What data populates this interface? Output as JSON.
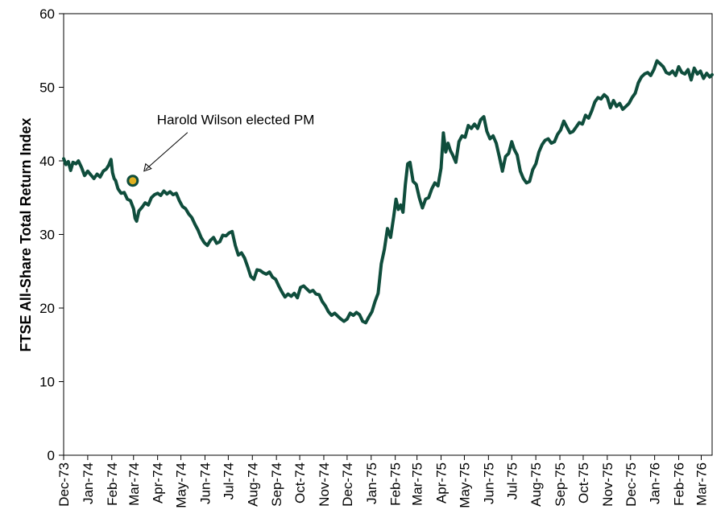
{
  "chart_data": {
    "type": "line",
    "title": "",
    "xlabel": "",
    "ylabel": "FTSE All-Share Total Return Index",
    "ylim": [
      0,
      60
    ],
    "yticks": [
      0,
      10,
      20,
      30,
      40,
      50,
      60
    ],
    "xlim": [
      "1973-12-01",
      "1976-03-15"
    ],
    "xtick_labels": [
      "Dec-73",
      "Jan-74",
      "Feb-74",
      "Mar-74",
      "Apr-74",
      "May-74",
      "Jun-74",
      "Jul-74",
      "Aug-74",
      "Sep-74",
      "Oct-74",
      "Nov-74",
      "Dec-74",
      "Jan-75",
      "Feb-75",
      "Mar-75",
      "Apr-75",
      "May-75",
      "Jun-75",
      "Jul-75",
      "Aug-75",
      "Sep-75",
      "Oct-75",
      "Nov-75",
      "Dec-75",
      "Jan-76",
      "Feb-76",
      "Mar-76"
    ],
    "grid": false,
    "legend": "none",
    "series": [
      {
        "color": "#0f4d3c",
        "points": [
          [
            "1973-12-01",
            40.3
          ],
          [
            "1973-12-04",
            39.5
          ],
          [
            "1973-12-07",
            39.9
          ],
          [
            "1973-12-10",
            38.7
          ],
          [
            "1973-12-13",
            39.8
          ],
          [
            "1973-12-17",
            39.6
          ],
          [
            "1973-12-20",
            40.0
          ],
          [
            "1973-12-24",
            39.1
          ],
          [
            "1973-12-28",
            38.0
          ],
          [
            "1974-01-01",
            38.6
          ],
          [
            "1974-01-05",
            38.1
          ],
          [
            "1974-01-09",
            37.6
          ],
          [
            "1974-01-13",
            38.2
          ],
          [
            "1974-01-17",
            37.8
          ],
          [
            "1974-01-21",
            38.6
          ],
          [
            "1974-01-25",
            38.9
          ],
          [
            "1974-01-28",
            39.4
          ],
          [
            "1974-01-31",
            40.2
          ],
          [
            "1974-02-02",
            38.4
          ],
          [
            "1974-02-04",
            37.6
          ],
          [
            "1974-02-06",
            37.3
          ],
          [
            "1974-02-09",
            36.2
          ],
          [
            "1974-02-13",
            35.6
          ],
          [
            "1974-02-17",
            35.7
          ],
          [
            "1974-02-21",
            34.8
          ],
          [
            "1974-02-25",
            34.6
          ],
          [
            "1974-03-01",
            33.5
          ],
          [
            "1974-03-03",
            32.2
          ],
          [
            "1974-03-05",
            31.8
          ],
          [
            "1974-03-08",
            33.2
          ],
          [
            "1974-03-12",
            33.7
          ],
          [
            "1974-03-16",
            34.3
          ],
          [
            "1974-03-20",
            34.0
          ],
          [
            "1974-03-24",
            35.0
          ],
          [
            "1974-03-28",
            35.4
          ],
          [
            "1974-04-01",
            35.6
          ],
          [
            "1974-04-05",
            35.3
          ],
          [
            "1974-04-09",
            35.9
          ],
          [
            "1974-04-13",
            35.5
          ],
          [
            "1974-04-17",
            35.8
          ],
          [
            "1974-04-21",
            35.4
          ],
          [
            "1974-04-25",
            35.6
          ],
          [
            "1974-04-29",
            34.6
          ],
          [
            "1974-05-03",
            33.8
          ],
          [
            "1974-05-07",
            33.5
          ],
          [
            "1974-05-11",
            32.8
          ],
          [
            "1974-05-15",
            32.3
          ],
          [
            "1974-05-19",
            31.4
          ],
          [
            "1974-05-23",
            30.6
          ],
          [
            "1974-05-27",
            29.6
          ],
          [
            "1974-05-31",
            28.9
          ],
          [
            "1974-06-04",
            28.5
          ],
          [
            "1974-06-08",
            29.2
          ],
          [
            "1974-06-12",
            29.6
          ],
          [
            "1974-06-16",
            28.8
          ],
          [
            "1974-06-20",
            29.0
          ],
          [
            "1974-06-24",
            29.9
          ],
          [
            "1974-06-28",
            29.8
          ],
          [
            "1974-07-02",
            30.2
          ],
          [
            "1974-07-06",
            30.4
          ],
          [
            "1974-07-10",
            28.5
          ],
          [
            "1974-07-14",
            27.2
          ],
          [
            "1974-07-18",
            27.5
          ],
          [
            "1974-07-22",
            26.8
          ],
          [
            "1974-07-26",
            25.6
          ],
          [
            "1974-07-30",
            24.3
          ],
          [
            "1974-08-03",
            23.9
          ],
          [
            "1974-08-07",
            25.2
          ],
          [
            "1974-08-11",
            25.1
          ],
          [
            "1974-08-15",
            24.8
          ],
          [
            "1974-08-19",
            24.6
          ],
          [
            "1974-08-23",
            24.9
          ],
          [
            "1974-08-27",
            24.2
          ],
          [
            "1974-08-31",
            23.9
          ],
          [
            "1974-09-04",
            23.0
          ],
          [
            "1974-09-08",
            22.2
          ],
          [
            "1974-09-12",
            21.5
          ],
          [
            "1974-09-16",
            21.9
          ],
          [
            "1974-09-20",
            21.6
          ],
          [
            "1974-09-24",
            22.0
          ],
          [
            "1974-09-28",
            21.4
          ],
          [
            "1974-10-02",
            22.8
          ],
          [
            "1974-10-06",
            23.0
          ],
          [
            "1974-10-10",
            22.6
          ],
          [
            "1974-10-14",
            22.2
          ],
          [
            "1974-10-18",
            22.4
          ],
          [
            "1974-10-22",
            21.9
          ],
          [
            "1974-10-26",
            21.8
          ],
          [
            "1974-10-30",
            20.9
          ],
          [
            "1974-11-03",
            20.3
          ],
          [
            "1974-11-07",
            19.5
          ],
          [
            "1974-11-11",
            19.0
          ],
          [
            "1974-11-15",
            19.3
          ],
          [
            "1974-11-19",
            18.9
          ],
          [
            "1974-11-23",
            18.5
          ],
          [
            "1974-11-27",
            18.2
          ],
          [
            "1974-12-01",
            18.5
          ],
          [
            "1974-12-05",
            19.3
          ],
          [
            "1974-12-09",
            19.0
          ],
          [
            "1974-12-13",
            19.4
          ],
          [
            "1974-12-17",
            19.1
          ],
          [
            "1974-12-21",
            18.2
          ],
          [
            "1974-12-25",
            18.0
          ],
          [
            "1974-12-29",
            18.8
          ],
          [
            "1975-01-02",
            19.5
          ],
          [
            "1975-01-06",
            20.9
          ],
          [
            "1975-01-10",
            22.0
          ],
          [
            "1975-01-14",
            26.0
          ],
          [
            "1975-01-18",
            28.0
          ],
          [
            "1975-01-22",
            30.8
          ],
          [
            "1975-01-26",
            29.6
          ],
          [
            "1975-01-30",
            32.4
          ],
          [
            "1975-02-02",
            34.8
          ],
          [
            "1975-02-05",
            33.4
          ],
          [
            "1975-02-08",
            34.0
          ],
          [
            "1975-02-11",
            33.0
          ],
          [
            "1975-02-14",
            36.8
          ],
          [
            "1975-02-17",
            39.6
          ],
          [
            "1975-02-20",
            39.8
          ],
          [
            "1975-02-24",
            37.2
          ],
          [
            "1975-02-28",
            36.8
          ],
          [
            "1975-03-04",
            35.0
          ],
          [
            "1975-03-08",
            33.6
          ],
          [
            "1975-03-12",
            34.8
          ],
          [
            "1975-03-16",
            35.0
          ],
          [
            "1975-03-20",
            36.2
          ],
          [
            "1975-03-24",
            37.0
          ],
          [
            "1975-03-28",
            36.6
          ],
          [
            "1975-04-01",
            39.0
          ],
          [
            "1975-04-04",
            43.8
          ],
          [
            "1975-04-07",
            41.2
          ],
          [
            "1975-04-10",
            42.4
          ],
          [
            "1975-04-13",
            41.4
          ],
          [
            "1975-04-16",
            40.8
          ],
          [
            "1975-04-20",
            39.8
          ],
          [
            "1975-04-24",
            42.6
          ],
          [
            "1975-04-28",
            43.4
          ],
          [
            "1975-05-02",
            43.2
          ],
          [
            "1975-05-06",
            44.8
          ],
          [
            "1975-05-10",
            44.4
          ],
          [
            "1975-05-14",
            45.0
          ],
          [
            "1975-05-18",
            44.4
          ],
          [
            "1975-05-22",
            45.6
          ],
          [
            "1975-05-26",
            46.0
          ],
          [
            "1975-05-30",
            44.0
          ],
          [
            "1975-06-03",
            43.0
          ],
          [
            "1975-06-07",
            43.4
          ],
          [
            "1975-06-11",
            42.4
          ],
          [
            "1975-06-15",
            40.6
          ],
          [
            "1975-06-19",
            38.6
          ],
          [
            "1975-06-23",
            40.6
          ],
          [
            "1975-06-27",
            41.0
          ],
          [
            "1975-07-01",
            42.6
          ],
          [
            "1975-07-04",
            41.6
          ],
          [
            "1975-07-08",
            40.8
          ],
          [
            "1975-07-12",
            38.6
          ],
          [
            "1975-07-16",
            37.6
          ],
          [
            "1975-07-20",
            37.0
          ],
          [
            "1975-07-24",
            37.2
          ],
          [
            "1975-07-28",
            38.8
          ],
          [
            "1975-08-01",
            39.6
          ],
          [
            "1975-08-05",
            41.2
          ],
          [
            "1975-08-09",
            42.2
          ],
          [
            "1975-08-13",
            42.8
          ],
          [
            "1975-08-17",
            43.0
          ],
          [
            "1975-08-21",
            42.4
          ],
          [
            "1975-08-25",
            42.6
          ],
          [
            "1975-08-29",
            43.6
          ],
          [
            "1975-09-02",
            44.2
          ],
          [
            "1975-09-06",
            45.4
          ],
          [
            "1975-09-10",
            44.6
          ],
          [
            "1975-09-14",
            43.8
          ],
          [
            "1975-09-18",
            44.0
          ],
          [
            "1975-09-22",
            44.6
          ],
          [
            "1975-09-26",
            45.2
          ],
          [
            "1975-09-30",
            45.0
          ],
          [
            "1975-10-04",
            46.2
          ],
          [
            "1975-10-08",
            45.8
          ],
          [
            "1975-10-12",
            46.8
          ],
          [
            "1975-10-16",
            48.0
          ],
          [
            "1975-10-20",
            48.6
          ],
          [
            "1975-10-24",
            48.4
          ],
          [
            "1975-10-28",
            49.0
          ],
          [
            "1975-11-01",
            48.6
          ],
          [
            "1975-11-05",
            47.2
          ],
          [
            "1975-11-09",
            48.2
          ],
          [
            "1975-11-13",
            47.4
          ],
          [
            "1975-11-17",
            47.8
          ],
          [
            "1975-11-21",
            47.0
          ],
          [
            "1975-11-25",
            47.4
          ],
          [
            "1975-11-29",
            47.8
          ],
          [
            "1975-12-03",
            48.6
          ],
          [
            "1975-12-07",
            49.2
          ],
          [
            "1975-12-11",
            50.6
          ],
          [
            "1975-12-15",
            51.4
          ],
          [
            "1975-12-19",
            51.8
          ],
          [
            "1975-12-23",
            52.0
          ],
          [
            "1975-12-27",
            51.6
          ],
          [
            "1975-12-31",
            52.4
          ],
          [
            "1976-01-04",
            53.6
          ],
          [
            "1976-01-08",
            53.2
          ],
          [
            "1976-01-12",
            52.8
          ],
          [
            "1976-01-16",
            52.0
          ],
          [
            "1976-01-20",
            51.8
          ],
          [
            "1976-01-24",
            52.2
          ],
          [
            "1976-01-28",
            51.6
          ],
          [
            "1976-02-01",
            52.8
          ],
          [
            "1976-02-05",
            52.0
          ],
          [
            "1976-02-09",
            51.8
          ],
          [
            "1976-02-13",
            52.4
          ],
          [
            "1976-02-17",
            51.0
          ],
          [
            "1976-02-21",
            52.6
          ],
          [
            "1976-02-25",
            51.8
          ],
          [
            "1976-02-29",
            52.2
          ],
          [
            "1976-03-04",
            51.2
          ],
          [
            "1976-03-08",
            51.9
          ],
          [
            "1976-03-12",
            51.4
          ],
          [
            "1976-03-15",
            51.7
          ]
        ]
      }
    ],
    "annotations": [
      {
        "text": "Harold Wilson elected PM",
        "x": "1974-02-28",
        "y": 37.3,
        "marker_color": "#e0b020"
      }
    ]
  }
}
